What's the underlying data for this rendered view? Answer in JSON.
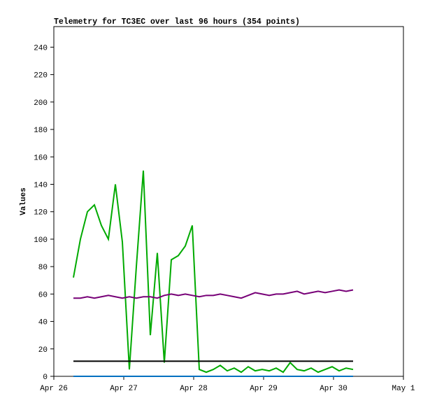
{
  "chart_data": {
    "type": "line",
    "title": "Telemetry for TC3EC over last 96 hours (354 points)",
    "y_label": "Values",
    "x": [
      0.28,
      0.38,
      0.48,
      0.58,
      0.68,
      0.78,
      0.88,
      0.98,
      1.08,
      1.18,
      1.28,
      1.38,
      1.48,
      1.58,
      1.68,
      1.78,
      1.88,
      1.98,
      2.08,
      2.18,
      2.28,
      2.38,
      2.48,
      2.58,
      2.68,
      2.78,
      2.88,
      2.98,
      3.08,
      3.18,
      3.28,
      3.38,
      3.48,
      3.58,
      3.68,
      3.78,
      3.88,
      3.98,
      4.08,
      4.18,
      4.28
    ],
    "series": [
      {
        "color": "#00aa00",
        "values": [
          72,
          100,
          120,
          125,
          110,
          100,
          140,
          98,
          5,
          80,
          150,
          30,
          90,
          10,
          85,
          88,
          95,
          110,
          5,
          3,
          5,
          8,
          4,
          6,
          3,
          7,
          4,
          5,
          4,
          6,
          3,
          10,
          5,
          4,
          6,
          3,
          5,
          7,
          4,
          6,
          5
        ]
      },
      {
        "color": "#770077",
        "values": [
          57,
          57,
          58,
          57,
          58,
          59,
          58,
          57,
          58,
          57,
          58,
          58,
          57,
          59,
          60,
          59,
          60,
          59,
          58,
          59,
          59,
          60,
          59,
          58,
          57,
          59,
          61,
          60,
          59,
          60,
          60,
          61,
          62,
          60,
          61,
          62,
          61,
          62,
          63,
          62,
          63
        ]
      },
      {
        "color": "#000000",
        "values": [
          11,
          11,
          11,
          11,
          11,
          11,
          11,
          11,
          11,
          11,
          11,
          11,
          11,
          11,
          11,
          11,
          11,
          11,
          11,
          11,
          11,
          11,
          11,
          11,
          11,
          11,
          11,
          11,
          11,
          11,
          11,
          11,
          11,
          11,
          11,
          11,
          11,
          11,
          11,
          11,
          11
        ]
      },
      {
        "color": "#0070c0",
        "values": [
          0,
          0,
          0,
          0,
          0,
          0,
          0,
          0,
          0,
          0,
          0,
          0,
          0,
          0,
          0,
          0,
          0,
          0,
          0,
          0,
          0,
          0,
          0,
          0,
          0,
          0,
          0,
          0,
          0,
          0,
          0,
          0,
          0,
          0,
          0,
          0,
          0,
          0,
          0,
          0,
          0
        ]
      }
    ],
    "xlim": [
      0,
      5
    ],
    "xticks": [
      {
        "value": 0,
        "label": "Apr 26"
      },
      {
        "value": 1,
        "label": "Apr 27"
      },
      {
        "value": 2,
        "label": "Apr 28"
      },
      {
        "value": 3,
        "label": "Apr 29"
      },
      {
        "value": 4,
        "label": "Apr 30"
      },
      {
        "value": 5,
        "label": "May 1"
      }
    ],
    "ylim": [
      0,
      255
    ],
    "yticks": [
      0,
      20,
      40,
      60,
      80,
      100,
      120,
      140,
      160,
      180,
      200,
      220,
      240
    ]
  }
}
